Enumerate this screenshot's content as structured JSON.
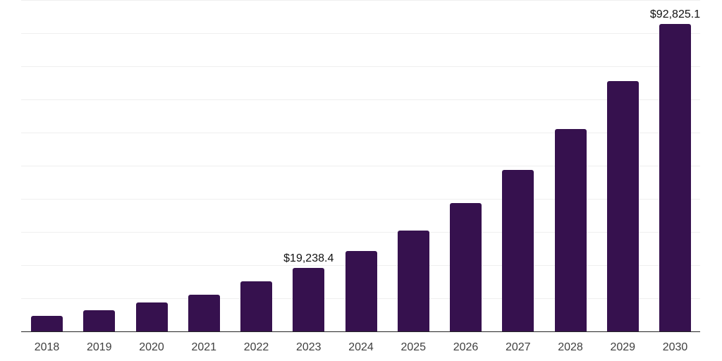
{
  "chart_data": {
    "type": "bar",
    "title": "",
    "xlabel": "",
    "ylabel": "",
    "categories": [
      "2018",
      "2019",
      "2020",
      "2021",
      "2022",
      "2023",
      "2024",
      "2025",
      "2026",
      "2027",
      "2028",
      "2029",
      "2030"
    ],
    "values": [
      4600,
      6400,
      8700,
      11100,
      15200,
      19238.4,
      24300,
      30500,
      38700,
      48700,
      61000,
      75500,
      92825.1
    ],
    "data_labels": [
      "",
      "",
      "",
      "",
      "",
      "$19,238.4",
      "",
      "",
      "",
      "",
      "",
      "",
      "$92,825.1"
    ],
    "ylim": [
      0,
      100000
    ],
    "gridline_step": 10000,
    "grid": true,
    "legend_position": "none",
    "y_tick_labels_visible": false,
    "colors": {
      "bar": "#36114E",
      "gridline": "#EFEFEF",
      "axis": "#262626",
      "x_tick_label": "#3F3F3F",
      "value_label": "#111111",
      "background": "#FFFFFF"
    }
  }
}
